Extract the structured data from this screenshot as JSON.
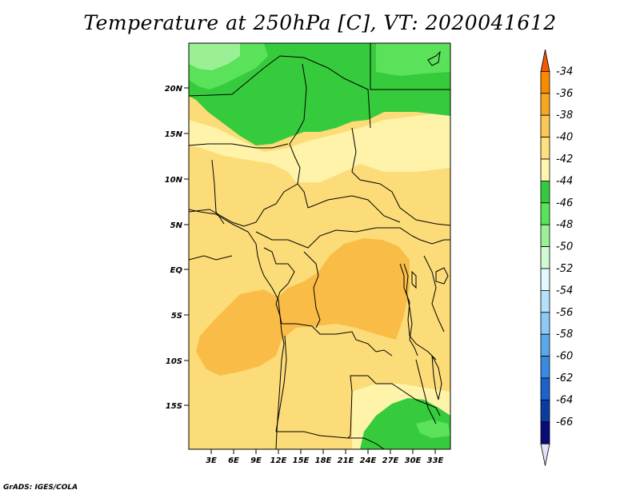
{
  "title": "Temperature at 250hPa [C], VT: 2020041612",
  "credit": "GrADS: IGES/COLA",
  "map": {
    "lat_labels": [
      "20N",
      "15N",
      "10N",
      "5N",
      "EQ",
      "5S",
      "10S",
      "15S"
    ],
    "lon_labels": [
      "3E",
      "6E",
      "9E",
      "12E",
      "15E",
      "18E",
      "21E",
      "24E",
      "27E",
      "30E",
      "33E"
    ]
  },
  "colorbar": {
    "levels": [
      "-34",
      "-36",
      "-38",
      "-40",
      "-42",
      "-44",
      "-46",
      "-48",
      "-50",
      "-52",
      "-54",
      "-56",
      "-58",
      "-60",
      "-62",
      "-64",
      "-66"
    ],
    "colors": [
      "#f05a00",
      "#f88c00",
      "#f8a820",
      "#fac858",
      "#fde080",
      "#fef6b0",
      "#36cb3c",
      "#5ae25a",
      "#9bf095",
      "#d2fad2",
      "#e2f8fc",
      "#b4e0fa",
      "#8ec8f5",
      "#5aa8ec",
      "#3a8ae2",
      "#1c62cc",
      "#0a3ca0",
      "#0a0a78",
      "#e1e1f8"
    ]
  }
}
